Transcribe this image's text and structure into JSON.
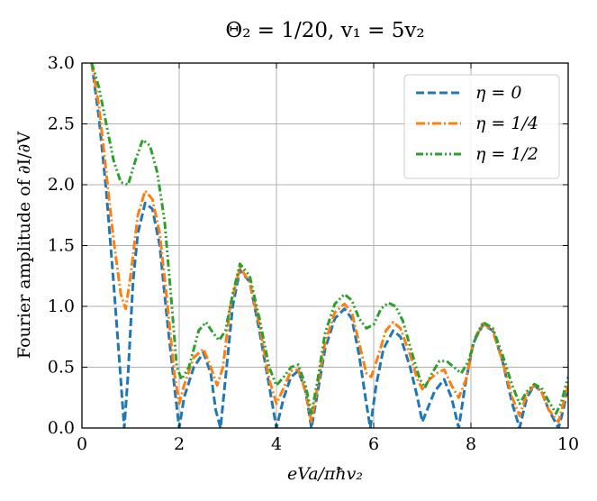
{
  "chart_data": {
    "type": "line",
    "title": "Θ₂ = 1/20, v₁ = 5v₂",
    "xlabel": "eVa/πħv₂",
    "ylabel": "Fourier amplitude of ∂I/∂V",
    "xlim": [
      0,
      10
    ],
    "ylim": [
      0,
      3.0
    ],
    "xticks": [
      "0",
      "2",
      "4",
      "6",
      "8",
      "10"
    ],
    "yticks": [
      "0.0",
      "0.5",
      "1.0",
      "1.5",
      "2.0",
      "2.5",
      "3.0"
    ],
    "grid": true,
    "legend_position": "top-right",
    "series": [
      {
        "name": "η = 0",
        "color": "#1f77b4",
        "dash": "dashed",
        "points": [
          [
            0.2,
            3.0
          ],
          [
            0.35,
            2.55
          ],
          [
            0.5,
            1.95
          ],
          [
            0.65,
            1.2
          ],
          [
            0.78,
            0.5
          ],
          [
            0.87,
            0.0
          ],
          [
            0.95,
            0.45
          ],
          [
            1.05,
            1.2
          ],
          [
            1.15,
            1.6
          ],
          [
            1.3,
            1.85
          ],
          [
            1.45,
            1.8
          ],
          [
            1.6,
            1.5
          ],
          [
            1.75,
            0.9
          ],
          [
            1.9,
            0.35
          ],
          [
            2.0,
            0.0
          ],
          [
            2.1,
            0.25
          ],
          [
            2.3,
            0.5
          ],
          [
            2.5,
            0.62
          ],
          [
            2.65,
            0.45
          ],
          [
            2.75,
            0.15
          ],
          [
            2.85,
            0.0
          ],
          [
            2.95,
            0.4
          ],
          [
            3.1,
            1.0
          ],
          [
            3.25,
            1.3
          ],
          [
            3.45,
            1.2
          ],
          [
            3.65,
            0.8
          ],
          [
            3.85,
            0.35
          ],
          [
            4.0,
            0.0
          ],
          [
            4.15,
            0.25
          ],
          [
            4.3,
            0.42
          ],
          [
            4.45,
            0.47
          ],
          [
            4.6,
            0.3
          ],
          [
            4.72,
            0.0
          ],
          [
            4.85,
            0.3
          ],
          [
            5.0,
            0.65
          ],
          [
            5.2,
            0.9
          ],
          [
            5.4,
            0.98
          ],
          [
            5.55,
            0.9
          ],
          [
            5.7,
            0.6
          ],
          [
            5.85,
            0.2
          ],
          [
            5.93,
            0.0
          ],
          [
            6.05,
            0.35
          ],
          [
            6.2,
            0.65
          ],
          [
            6.4,
            0.8
          ],
          [
            6.55,
            0.75
          ],
          [
            6.75,
            0.5
          ],
          [
            6.9,
            0.25
          ],
          [
            7.0,
            0.05
          ],
          [
            7.1,
            0.15
          ],
          [
            7.25,
            0.3
          ],
          [
            7.45,
            0.4
          ],
          [
            7.6,
            0.25
          ],
          [
            7.75,
            0.0
          ],
          [
            7.88,
            0.35
          ],
          [
            8.05,
            0.7
          ],
          [
            8.25,
            0.85
          ],
          [
            8.45,
            0.8
          ],
          [
            8.65,
            0.55
          ],
          [
            8.85,
            0.2
          ],
          [
            9.0,
            0.0
          ],
          [
            9.15,
            0.25
          ],
          [
            9.3,
            0.35
          ],
          [
            9.45,
            0.3
          ],
          [
            9.6,
            0.15
          ],
          [
            9.8,
            0.0
          ],
          [
            9.9,
            0.15
          ],
          [
            10.0,
            0.35
          ]
        ]
      },
      {
        "name": "η = 1/4",
        "color": "#ff7f0e",
        "dash": "dashdot",
        "points": [
          [
            0.2,
            3.0
          ],
          [
            0.35,
            2.65
          ],
          [
            0.5,
            2.1
          ],
          [
            0.65,
            1.55
          ],
          [
            0.8,
            1.1
          ],
          [
            0.9,
            0.98
          ],
          [
            1.0,
            1.25
          ],
          [
            1.15,
            1.75
          ],
          [
            1.3,
            1.95
          ],
          [
            1.45,
            1.88
          ],
          [
            1.6,
            1.6
          ],
          [
            1.75,
            1.05
          ],
          [
            1.9,
            0.45
          ],
          [
            2.0,
            0.2
          ],
          [
            2.1,
            0.35
          ],
          [
            2.3,
            0.58
          ],
          [
            2.5,
            0.65
          ],
          [
            2.65,
            0.5
          ],
          [
            2.78,
            0.35
          ],
          [
            2.9,
            0.5
          ],
          [
            3.05,
            1.0
          ],
          [
            3.25,
            1.32
          ],
          [
            3.45,
            1.2
          ],
          [
            3.65,
            0.85
          ],
          [
            3.85,
            0.4
          ],
          [
            4.0,
            0.2
          ],
          [
            4.15,
            0.33
          ],
          [
            4.3,
            0.47
          ],
          [
            4.45,
            0.48
          ],
          [
            4.6,
            0.3
          ],
          [
            4.72,
            0.05
          ],
          [
            4.85,
            0.35
          ],
          [
            5.0,
            0.7
          ],
          [
            5.2,
            0.95
          ],
          [
            5.4,
            1.02
          ],
          [
            5.55,
            0.95
          ],
          [
            5.7,
            0.7
          ],
          [
            5.85,
            0.45
          ],
          [
            5.95,
            0.42
          ],
          [
            6.1,
            0.6
          ],
          [
            6.25,
            0.8
          ],
          [
            6.4,
            0.87
          ],
          [
            6.55,
            0.82
          ],
          [
            6.75,
            0.6
          ],
          [
            6.9,
            0.4
          ],
          [
            7.0,
            0.32
          ],
          [
            7.15,
            0.4
          ],
          [
            7.3,
            0.45
          ],
          [
            7.45,
            0.48
          ],
          [
            7.6,
            0.35
          ],
          [
            7.75,
            0.25
          ],
          [
            7.9,
            0.4
          ],
          [
            8.05,
            0.7
          ],
          [
            8.25,
            0.86
          ],
          [
            8.45,
            0.8
          ],
          [
            8.65,
            0.55
          ],
          [
            8.85,
            0.25
          ],
          [
            9.0,
            0.1
          ],
          [
            9.15,
            0.28
          ],
          [
            9.3,
            0.35
          ],
          [
            9.45,
            0.3
          ],
          [
            9.6,
            0.15
          ],
          [
            9.8,
            0.05
          ],
          [
            9.9,
            0.2
          ],
          [
            10.0,
            0.35
          ]
        ]
      },
      {
        "name": "η = 1/2",
        "color": "#2ca02c",
        "dash": "dashdotdot",
        "points": [
          [
            0.2,
            3.0
          ],
          [
            0.35,
            2.8
          ],
          [
            0.5,
            2.5
          ],
          [
            0.65,
            2.2
          ],
          [
            0.8,
            2.02
          ],
          [
            0.95,
            2.0
          ],
          [
            1.1,
            2.2
          ],
          [
            1.25,
            2.37
          ],
          [
            1.4,
            2.32
          ],
          [
            1.55,
            2.1
          ],
          [
            1.7,
            1.7
          ],
          [
            1.85,
            1.0
          ],
          [
            1.95,
            0.5
          ],
          [
            2.05,
            0.4
          ],
          [
            2.2,
            0.5
          ],
          [
            2.4,
            0.8
          ],
          [
            2.55,
            0.87
          ],
          [
            2.7,
            0.78
          ],
          [
            2.82,
            0.72
          ],
          [
            2.95,
            0.8
          ],
          [
            3.1,
            1.1
          ],
          [
            3.25,
            1.35
          ],
          [
            3.45,
            1.25
          ],
          [
            3.65,
            0.9
          ],
          [
            3.85,
            0.5
          ],
          [
            4.0,
            0.35
          ],
          [
            4.15,
            0.42
          ],
          [
            4.3,
            0.5
          ],
          [
            4.45,
            0.52
          ],
          [
            4.6,
            0.35
          ],
          [
            4.72,
            0.12
          ],
          [
            4.85,
            0.4
          ],
          [
            5.0,
            0.78
          ],
          [
            5.2,
            1.02
          ],
          [
            5.4,
            1.1
          ],
          [
            5.55,
            1.05
          ],
          [
            5.7,
            0.9
          ],
          [
            5.85,
            0.82
          ],
          [
            6.0,
            0.85
          ],
          [
            6.15,
            0.98
          ],
          [
            6.3,
            1.03
          ],
          [
            6.45,
            1.0
          ],
          [
            6.6,
            0.88
          ],
          [
            6.8,
            0.6
          ],
          [
            6.95,
            0.4
          ],
          [
            7.05,
            0.33
          ],
          [
            7.2,
            0.45
          ],
          [
            7.35,
            0.55
          ],
          [
            7.5,
            0.55
          ],
          [
            7.65,
            0.5
          ],
          [
            7.8,
            0.45
          ],
          [
            7.95,
            0.55
          ],
          [
            8.1,
            0.75
          ],
          [
            8.25,
            0.87
          ],
          [
            8.45,
            0.82
          ],
          [
            8.65,
            0.6
          ],
          [
            8.85,
            0.35
          ],
          [
            9.0,
            0.2
          ],
          [
            9.15,
            0.3
          ],
          [
            9.3,
            0.36
          ],
          [
            9.45,
            0.33
          ],
          [
            9.6,
            0.22
          ],
          [
            9.75,
            0.12
          ],
          [
            9.85,
            0.2
          ],
          [
            10.0,
            0.42
          ]
        ]
      }
    ]
  }
}
